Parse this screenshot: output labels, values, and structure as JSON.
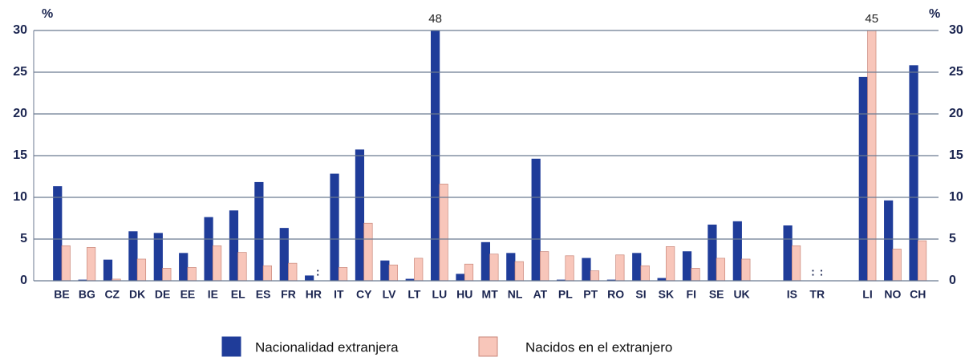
{
  "chart_data": {
    "type": "bar",
    "ylabel": "%",
    "y2label": "%",
    "categories": [
      "BE",
      "BG",
      "CZ",
      "DK",
      "DE",
      "EE",
      "IE",
      "EL",
      "ES",
      "FR",
      "HR",
      "IT",
      "CY",
      "LV",
      "LT",
      "LU",
      "HU",
      "MT",
      "NL",
      "AT",
      "PL",
      "PT",
      "RO",
      "SI",
      "SK",
      "FI",
      "SE",
      "UK",
      null,
      "IS",
      "TR",
      null,
      "LI",
      "NO",
      "CH"
    ],
    "series": [
      {
        "name": "Nacionalidad extranjera",
        "color": "#1f3c99",
        "values": [
          11.3,
          0.1,
          2.5,
          5.9,
          5.7,
          3.3,
          7.6,
          8.4,
          11.8,
          6.3,
          0.6,
          12.8,
          15.7,
          2.4,
          0.2,
          48,
          0.8,
          4.6,
          3.3,
          14.6,
          0.1,
          2.7,
          0.1,
          3.3,
          0.3,
          3.5,
          6.7,
          7.1,
          null,
          6.6,
          null,
          null,
          24.4,
          9.6,
          25.8
        ],
        "value_labels": [
          null,
          null,
          null,
          null,
          null,
          null,
          null,
          null,
          null,
          null,
          null,
          null,
          null,
          null,
          null,
          "48",
          null,
          null,
          null,
          null,
          null,
          null,
          null,
          null,
          null,
          null,
          null,
          null,
          null,
          null,
          ":",
          null,
          null,
          null,
          null
        ]
      },
      {
        "name": "Nacidos en el extranjero",
        "color": "#f8c6ba",
        "values": [
          4.2,
          4.0,
          0.2,
          2.6,
          1.5,
          1.6,
          4.2,
          3.4,
          1.8,
          2.1,
          null,
          1.6,
          6.9,
          1.9,
          2.7,
          11.6,
          2.0,
          3.2,
          2.3,
          3.5,
          3.0,
          1.2,
          3.1,
          1.8,
          4.1,
          1.5,
          2.7,
          2.6,
          null,
          4.2,
          null,
          null,
          45,
          3.8,
          4.8
        ],
        "value_labels": [
          null,
          null,
          null,
          null,
          null,
          null,
          null,
          null,
          null,
          null,
          ":",
          null,
          null,
          null,
          null,
          null,
          null,
          null,
          null,
          null,
          null,
          null,
          null,
          null,
          null,
          null,
          null,
          null,
          null,
          null,
          ":",
          null,
          "45",
          null,
          null
        ]
      }
    ],
    "ylim": [
      0,
      30
    ],
    "yticks": [
      0,
      5,
      10,
      15,
      20,
      25,
      30
    ],
    "y2lim": [
      0,
      30
    ],
    "y2ticks": [
      0,
      5,
      10,
      15,
      20,
      25,
      30
    ],
    "grid": true
  }
}
